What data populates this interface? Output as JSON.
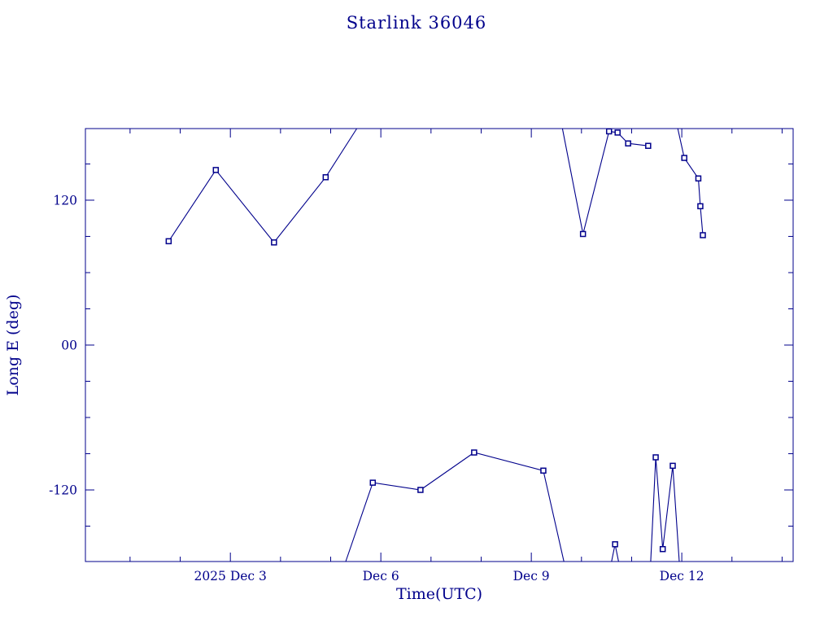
{
  "colors": {
    "accent": "#00008B",
    "background": "#FFFFFF"
  },
  "chart_data": {
    "type": "line",
    "title": "Starlink 36046",
    "xlabel": "Time(UTC)",
    "ylabel": "Long E (deg)",
    "x_unit": "day of December 2025 (UTC)",
    "xlim": [
      0.11,
      14.22
    ],
    "ylim": [
      -179.3,
      179.3
    ],
    "x_ticks": [
      {
        "value": 3,
        "label": "2025 Dec 3"
      },
      {
        "value": 6,
        "label": "Dec 6"
      },
      {
        "value": 9,
        "label": "Dec 9"
      },
      {
        "value": 12,
        "label": "Dec 12"
      }
    ],
    "y_ticks": [
      {
        "value": 120,
        "label": "120"
      },
      {
        "value": 0,
        "label": "00"
      },
      {
        "value": -120,
        "label": "-120"
      }
    ],
    "x_minor_step": 1,
    "y_minor_step": 30,
    "grid": false,
    "legend": false,
    "line_color": "#00008B",
    "marker": "open-square",
    "point_format": [
      "day_of_dec_2025_utc",
      "longitude_deg_east",
      "has_marker"
    ],
    "segments": [
      {
        "points": [
          [
            1.77,
            86,
            1
          ],
          [
            2.71,
            145,
            1
          ],
          [
            3.87,
            85,
            1
          ],
          [
            4.9,
            139,
            1
          ],
          [
            5.52,
            179.3,
            0
          ]
        ]
      },
      {
        "points": [
          [
            9.62,
            179.3,
            0
          ],
          [
            10.03,
            92,
            1
          ],
          [
            10.55,
            177,
            1
          ],
          [
            10.72,
            176,
            1
          ],
          [
            10.93,
            167,
            1
          ],
          [
            11.33,
            165,
            1
          ]
        ]
      },
      {
        "points": [
          [
            11.92,
            179.3,
            0
          ],
          [
            12.05,
            155,
            1
          ],
          [
            12.33,
            138,
            1
          ],
          [
            12.37,
            115,
            1
          ],
          [
            12.42,
            91,
            1
          ]
        ]
      },
      {
        "points": [
          [
            5.3,
            -179.3,
            0
          ],
          [
            5.84,
            -114,
            1
          ],
          [
            6.79,
            -120,
            1
          ],
          [
            7.86,
            -89,
            1
          ],
          [
            9.24,
            -104,
            1
          ],
          [
            9.65,
            -179.3,
            0
          ]
        ]
      },
      {
        "points": [
          [
            10.6,
            -179.3,
            0
          ],
          [
            10.67,
            -165,
            1
          ],
          [
            10.74,
            -179.3,
            0
          ]
        ]
      },
      {
        "points": [
          [
            11.38,
            -179.3,
            0
          ],
          [
            11.48,
            -93,
            1
          ],
          [
            11.62,
            -169,
            1
          ],
          [
            11.82,
            -100,
            1
          ],
          [
            11.95,
            -179.3,
            0
          ]
        ]
      }
    ]
  }
}
